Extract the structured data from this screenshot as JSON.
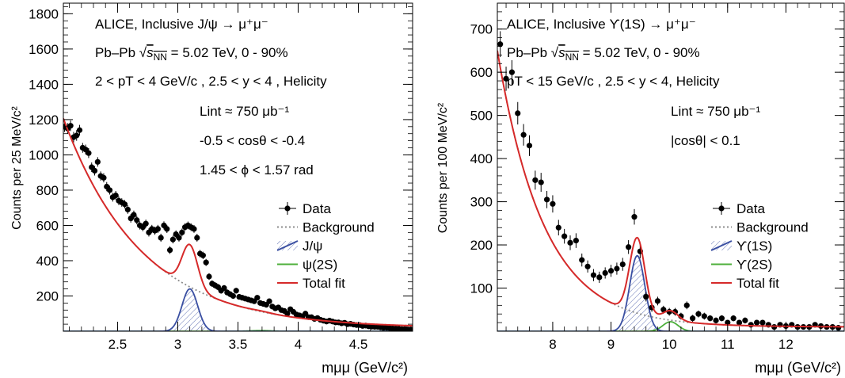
{
  "chart_data": [
    {
      "type": "scatter",
      "annotations": {
        "line1": "ALICE, Inclusive J/ψ → μ⁺μ⁻",
        "line2_pre": "Pb–Pb ",
        "line2_post": " = 5.02 TeV, 0 - 90%",
        "line3": "2 < pT < 4 GeV/c , 2.5 < y < 4 , Helicity",
        "lumi": "Lint ≈ 750 μb⁻¹",
        "cos": "-0.5 < cosθ < -0.4",
        "phi": "1.45 < ϕ < 1.57 rad"
      },
      "xlabel": "mμμ (GeV/c²)",
      "ylabel": "Counts per 25 MeV/c²",
      "xlim": [
        2.05,
        4.95
      ],
      "ylim": [
        0,
        1860
      ],
      "xticks": [
        "2.5",
        "3",
        "3.5",
        "4",
        "4.5"
      ],
      "xtick_values": [
        2.5,
        3.0,
        3.5,
        4.0,
        4.5
      ],
      "yticks": [
        "200",
        "400",
        "600",
        "800",
        "1000",
        "1200",
        "1400",
        "1600",
        "1800"
      ],
      "ytick_values": [
        200,
        400,
        600,
        800,
        1000,
        1200,
        1400,
        1600,
        1800
      ],
      "legend": [
        {
          "label": "Data",
          "style": "marker"
        },
        {
          "label": "Background",
          "style": "dotted",
          "color": "#8c8c8c"
        },
        {
          "label": "J/ψ",
          "style": "hatch",
          "color": "#3a4fa2"
        },
        {
          "label": "ψ(2S)",
          "style": "line",
          "color": "#4caf3a"
        },
        {
          "label": "Total fit",
          "style": "line",
          "color": "#d62a2a"
        }
      ],
      "series": [
        {
          "name": "Data",
          "x": [
            2.06,
            2.085,
            2.11,
            2.135,
            2.16,
            2.185,
            2.21,
            2.235,
            2.26,
            2.285,
            2.31,
            2.335,
            2.36,
            2.385,
            2.41,
            2.435,
            2.46,
            2.485,
            2.51,
            2.535,
            2.56,
            2.585,
            2.61,
            2.635,
            2.66,
            2.685,
            2.71,
            2.735,
            2.76,
            2.785,
            2.81,
            2.835,
            2.86,
            2.885,
            2.91,
            2.935,
            2.96,
            2.985,
            3.01,
            3.035,
            3.06,
            3.085,
            3.11,
            3.135,
            3.16,
            3.185,
            3.21,
            3.235,
            3.26,
            3.285,
            3.31,
            3.335,
            3.36,
            3.385,
            3.41,
            3.435,
            3.46,
            3.485,
            3.51,
            3.535,
            3.56,
            3.585,
            3.61,
            3.635,
            3.66,
            3.685,
            3.71,
            3.735,
            3.76,
            3.785,
            3.81,
            3.835,
            3.86,
            3.885,
            3.91,
            3.935,
            3.96,
            3.985,
            4.01,
            4.035,
            4.06,
            4.085,
            4.11,
            4.135,
            4.16,
            4.185,
            4.21,
            4.235,
            4.26,
            4.285,
            4.31,
            4.335,
            4.36,
            4.385,
            4.41,
            4.435,
            4.46,
            4.485,
            4.51,
            4.535,
            4.56,
            4.585,
            4.61,
            4.635,
            4.66,
            4.685,
            4.71,
            4.735,
            4.76,
            4.785,
            4.81,
            4.835,
            4.86,
            4.885,
            4.91,
            4.935
          ],
          "y": [
            1160,
            1150,
            1165,
            1100,
            1110,
            1140,
            1040,
            1030,
            1010,
            930,
            910,
            960,
            880,
            870,
            820,
            800,
            760,
            770,
            740,
            730,
            720,
            690,
            640,
            660,
            630,
            600,
            590,
            610,
            560,
            580,
            570,
            580,
            530,
            600,
            580,
            460,
            520,
            550,
            530,
            560,
            590,
            600,
            590,
            580,
            530,
            440,
            430,
            390,
            310,
            270,
            260,
            250,
            230,
            245,
            220,
            210,
            200,
            230,
            195,
            190,
            185,
            180,
            175,
            170,
            190,
            160,
            155,
            150,
            170,
            140,
            130,
            135,
            120,
            115,
            100,
            125,
            110,
            95,
            90,
            85,
            100,
            80,
            80,
            70,
            75,
            65,
            60,
            55,
            60,
            55,
            50,
            50,
            45,
            48,
            40,
            42,
            38,
            35,
            35,
            30,
            32,
            28,
            26,
            25,
            25,
            22,
            20,
            20,
            18,
            16,
            15,
            14,
            12,
            12,
            10,
            10
          ],
          "err": [
            30,
            30,
            30,
            30,
            30,
            30,
            28,
            28,
            28,
            27,
            27,
            27,
            26,
            26,
            26,
            25,
            25,
            25,
            25,
            24,
            24,
            24,
            24,
            24,
            24,
            23,
            23,
            23,
            23,
            23,
            23,
            23,
            23,
            23,
            23,
            22,
            22,
            22,
            22,
            22,
            22,
            22,
            22,
            22,
            22,
            21,
            21,
            20,
            19,
            18,
            18,
            18,
            17,
            17,
            17,
            17,
            16,
            16,
            16,
            16,
            15,
            15,
            15,
            15,
            15,
            14,
            14,
            14,
            14,
            14,
            13,
            13,
            13,
            13,
            12,
            12,
            12,
            12,
            12,
            11,
            11,
            11,
            11,
            10,
            10,
            10,
            10,
            10,
            10,
            9,
            9,
            9,
            9,
            9,
            9,
            9,
            8,
            8,
            8,
            8,
            8,
            8,
            7,
            7,
            7,
            7,
            7,
            7,
            7,
            6,
            6,
            6,
            6,
            6,
            6,
            6
          ]
        }
      ],
      "colors": {
        "fit": "#d62a2a",
        "background": "#8c8c8c",
        "signal": "#3a4fa2",
        "signal2": "#4caf3a",
        "data": "#000000"
      }
    },
    {
      "type": "scatter",
      "annotations": {
        "line1": "ALICE, Inclusive ϒ(1S) → μ⁺μ⁻",
        "line2_pre": "Pb–Pb ",
        "line2_post": " = 5.02 TeV, 0 - 90%",
        "line3": "pT < 15 GeV/c , 2.5 < y < 4, Helicity",
        "lumi": "Lint ≈ 750 μb⁻¹",
        "cos": "|cosθ| < 0.1"
      },
      "xlabel": "mμμ (GeV/c²)",
      "ylabel": "Counts per 100 MeV/c²",
      "xlim": [
        7.05,
        13.0
      ],
      "ylim": [
        0,
        760
      ],
      "xticks": [
        "8",
        "9",
        "10",
        "11",
        "12"
      ],
      "xtick_values": [
        8,
        9,
        10,
        11,
        12
      ],
      "yticks": [
        "100",
        "200",
        "300",
        "400",
        "500",
        "600",
        "700"
      ],
      "ytick_values": [
        100,
        200,
        300,
        400,
        500,
        600,
        700
      ],
      "legend": [
        {
          "label": "Data",
          "style": "marker"
        },
        {
          "label": "Background",
          "style": "dotted",
          "color": "#8c8c8c"
        },
        {
          "label": "ϒ(1S)",
          "style": "hatch",
          "color": "#3a4fa2"
        },
        {
          "label": "ϒ(2S)",
          "style": "line",
          "color": "#4caf3a"
        },
        {
          "label": "Total fit",
          "style": "line",
          "color": "#d62a2a"
        }
      ],
      "series": [
        {
          "name": "Data",
          "x": [
            7.1,
            7.2,
            7.3,
            7.4,
            7.5,
            7.6,
            7.7,
            7.8,
            7.9,
            8.0,
            8.1,
            8.2,
            8.3,
            8.4,
            8.5,
            8.6,
            8.7,
            8.8,
            8.9,
            9.0,
            9.1,
            9.2,
            9.3,
            9.4,
            9.5,
            9.6,
            9.7,
            9.8,
            9.9,
            10.0,
            10.1,
            10.2,
            10.3,
            10.4,
            10.5,
            10.6,
            10.7,
            10.8,
            10.9,
            11.0,
            11.1,
            11.2,
            11.3,
            11.4,
            11.5,
            11.6,
            11.7,
            11.8,
            11.9,
            12.0,
            12.1,
            12.2,
            12.3,
            12.4,
            12.5,
            12.6,
            12.7,
            12.8,
            12.9
          ],
          "y": [
            665,
            585,
            600,
            505,
            455,
            430,
            350,
            345,
            305,
            295,
            240,
            220,
            205,
            210,
            165,
            150,
            130,
            125,
            135,
            140,
            145,
            155,
            195,
            265,
            185,
            80,
            55,
            70,
            50,
            45,
            45,
            35,
            60,
            30,
            40,
            35,
            30,
            25,
            30,
            20,
            30,
            20,
            25,
            15,
            20,
            20,
            15,
            10,
            15,
            12,
            15,
            10,
            10,
            10,
            15,
            12,
            10,
            10,
            8
          ],
          "err": [
            30,
            28,
            28,
            26,
            25,
            24,
            22,
            22,
            20,
            20,
            18,
            17,
            17,
            17,
            15,
            14,
            14,
            13,
            13,
            14,
            14,
            15,
            16,
            18,
            16,
            11,
            10,
            10,
            9,
            9,
            9,
            8,
            9,
            8,
            8,
            8,
            7,
            7,
            7,
            6,
            7,
            6,
            7,
            6,
            6,
            6,
            6,
            5,
            6,
            5,
            6,
            5,
            5,
            5,
            5,
            5,
            5,
            5,
            4
          ]
        }
      ],
      "colors": {
        "fit": "#d62a2a",
        "background": "#8c8c8c",
        "signal": "#3a4fa2",
        "signal2": "#4caf3a",
        "data": "#000000"
      }
    }
  ]
}
